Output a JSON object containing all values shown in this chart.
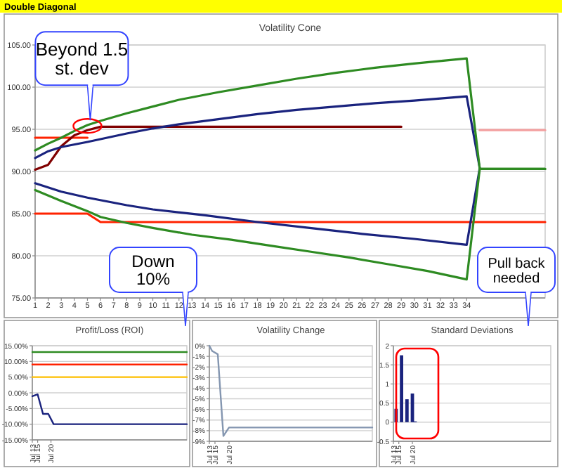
{
  "chart_data": [
    {
      "type": "line",
      "title": "Double Diagonal",
      "subtitle": "Volatility Cone",
      "xlim": [
        1,
        40
      ],
      "xticks": [
        1,
        2,
        3,
        4,
        5,
        6,
        7,
        8,
        9,
        10,
        11,
        12,
        13,
        14,
        15,
        16,
        17,
        18,
        19,
        20,
        21,
        22,
        23,
        24,
        25,
        26,
        27,
        28,
        29,
        30,
        31,
        32,
        33,
        34
      ],
      "ylim": [
        75,
        105
      ],
      "yticks": [
        {
          "value": 75,
          "label": "75.00"
        },
        {
          "value": 80,
          "label": "80.00"
        },
        {
          "value": 85,
          "label": "85.00"
        },
        {
          "value": 90,
          "label": "90.00"
        },
        {
          "value": 95,
          "label": "95.00"
        },
        {
          "value": 100,
          "label": "100.00"
        },
        {
          "value": 105,
          "label": "105.00"
        }
      ],
      "grid": "y",
      "annotations": [
        {
          "text": "Beyond 1.5 st. dev",
          "x": 5,
          "y": 95.4
        }
      ],
      "series": [
        {
          "color": "#ff2200",
          "x": [
            1,
            5,
            6,
            40
          ],
          "values": [
            85,
            85,
            84,
            84
          ]
        },
        {
          "color": "#ff2200",
          "x": [
            1,
            5
          ],
          "values": [
            94,
            94
          ]
        },
        {
          "color": "#f4a0a0",
          "x": [
            35,
            40
          ],
          "values": [
            94.9,
            94.9
          ]
        },
        {
          "color": "#800000",
          "x": [
            1,
            2,
            3,
            4,
            5,
            6,
            29
          ],
          "values": [
            90.2,
            90.8,
            93.0,
            94.3,
            94.9,
            95.3,
            95.3
          ]
        },
        {
          "color": "#1a237e",
          "x": [
            1,
            2,
            3,
            5,
            8,
            10,
            12,
            15,
            18,
            21,
            24,
            27,
            30,
            34,
            35,
            34,
            30,
            26,
            22,
            18,
            14,
            10,
            8,
            5,
            3,
            1
          ],
          "values": [
            91.6,
            92.4,
            92.9,
            93.5,
            94.5,
            95.1,
            95.6,
            96.2,
            96.8,
            97.3,
            97.7,
            98.1,
            98.4,
            98.9,
            90.4,
            81.3,
            82.0,
            82.6,
            83.3,
            84.0,
            84.8,
            85.5,
            86.0,
            86.9,
            87.6,
            88.6
          ]
        },
        {
          "color": "#2e8b22",
          "x": [
            1,
            2,
            3,
            4,
            5,
            6,
            8,
            10,
            12,
            15,
            18,
            21,
            24,
            27,
            30,
            34,
            35,
            40
          ],
          "values": [
            92.5,
            93.3,
            94.0,
            94.8,
            95.5,
            96.0,
            96.9,
            97.7,
            98.5,
            99.4,
            100.2,
            101.0,
            101.7,
            102.3,
            102.8,
            103.4,
            90.3,
            90.3
          ]
        },
        {
          "color": "#2e8b22",
          "x": [
            1,
            3,
            5,
            6,
            8,
            10,
            13,
            16,
            19,
            22,
            25,
            28,
            31,
            34,
            35,
            40
          ],
          "values": [
            87.8,
            86.5,
            85.3,
            84.6,
            83.9,
            83.3,
            82.5,
            81.9,
            81.2,
            80.5,
            79.8,
            79.0,
            78.2,
            77.2,
            90.3,
            90.3
          ]
        }
      ]
    },
    {
      "type": "line",
      "title": "Profit/Loss (ROI)",
      "xlim": [
        "--07-13",
        "--09-09"
      ],
      "xticks": [
        {
          "value": "--07-13",
          "label": "Jul 13"
        },
        {
          "value": "--07-15",
          "label": "Jul 15"
        },
        {
          "value": "--07-20",
          "label": "Jul 20"
        }
      ],
      "ylim": [
        -15,
        15
      ],
      "yticks": [
        {
          "value": -15,
          "label": "-15.00%"
        },
        {
          "value": -10,
          "label": "-10.00%"
        },
        {
          "value": -5,
          "label": "-5.00%"
        },
        {
          "value": 0,
          "label": "0.00%"
        },
        {
          "value": 5,
          "label": "5.00%"
        },
        {
          "value": 10,
          "label": "10.00%"
        },
        {
          "value": 15,
          "label": "15.00%"
        }
      ],
      "grid": "y",
      "annotations": [
        "Down 10%"
      ],
      "series": [
        {
          "color": "#2e8b22",
          "x": [
            "--07-13",
            "--09-09"
          ],
          "values": [
            13,
            13
          ]
        },
        {
          "color": "#ff2200",
          "x": [
            "--07-13",
            "--09-09"
          ],
          "values": [
            9,
            9
          ]
        },
        {
          "color": "#ffc000",
          "x": [
            "--07-13",
            "--09-09"
          ],
          "values": [
            5,
            5
          ]
        },
        {
          "color": "#1a237e",
          "x": [
            "--07-13",
            "--07-15",
            "--07-17",
            "--07-19",
            "--07-21",
            "--09-09"
          ],
          "values": [
            -1.1,
            -0.5,
            -6.7,
            -6.7,
            -10.0,
            -10.0
          ]
        }
      ]
    },
    {
      "type": "line",
      "title": "Volatility Change",
      "xlim": [
        "--07-13",
        "--09-09"
      ],
      "xticks": [
        {
          "value": "--07-13",
          "label": "Jul 13"
        },
        {
          "value": "--07-15",
          "label": "Jul 15"
        },
        {
          "value": "--07-20",
          "label": "Jul 20"
        }
      ],
      "ylim": [
        -9,
        0
      ],
      "yticks": [
        {
          "value": -9,
          "label": "-9%"
        },
        {
          "value": -8,
          "label": "-8%"
        },
        {
          "value": -7,
          "label": "-7%"
        },
        {
          "value": -6,
          "label": "-6%"
        },
        {
          "value": -5,
          "label": "-5%"
        },
        {
          "value": -4,
          "label": "-4%"
        },
        {
          "value": -3,
          "label": "-3%"
        },
        {
          "value": -2,
          "label": "-2%"
        },
        {
          "value": -1,
          "label": "-1%"
        },
        {
          "value": 0,
          "label": "0%"
        }
      ],
      "grid": "y",
      "series": [
        {
          "color": "#8496b0",
          "x": [
            "--07-13",
            "--07-14",
            "--07-16",
            "--07-18",
            "--07-20",
            "--09-09"
          ],
          "values": [
            0,
            -0.5,
            -0.8,
            -8.5,
            -7.7,
            -7.7
          ]
        }
      ]
    },
    {
      "type": "bar",
      "title": "Standard Deviations",
      "xlim": [
        "--07-13",
        "--09-09"
      ],
      "xticks": [
        {
          "value": "--07-13",
          "label": "Jul 13"
        },
        {
          "value": "--07-15",
          "label": "Jul 15"
        },
        {
          "value": "--07-20",
          "label": "Jul 20"
        }
      ],
      "ylim": [
        -0.5,
        2
      ],
      "yticks": [
        -0.5,
        0,
        0.5,
        1,
        1.5,
        2
      ],
      "grid": "y",
      "annotations": [
        "Pull back needed"
      ],
      "x": [
        "--07-14",
        "--07-16",
        "--07-18",
        "--07-20",
        "--07-21"
      ],
      "values": [
        0.35,
        1.75,
        0.6,
        0.75,
        0.02
      ],
      "color": "#1a237e"
    }
  ]
}
